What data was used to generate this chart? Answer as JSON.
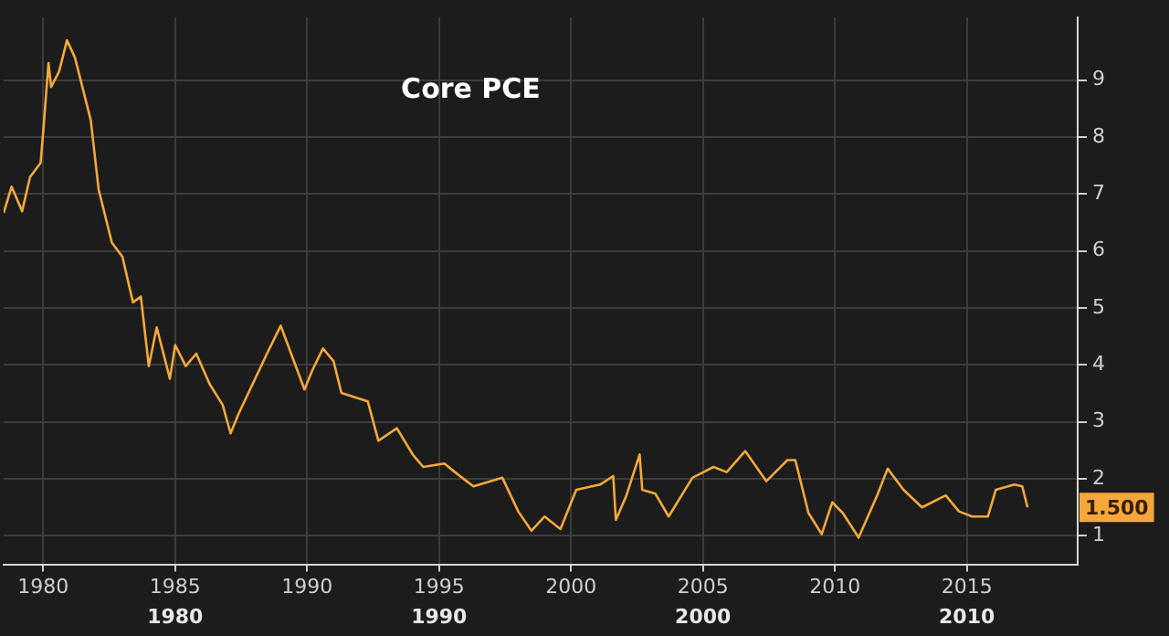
{
  "chart_data": {
    "type": "line",
    "title": "Core PCE",
    "x": [
      1978.5,
      1978.8,
      1979.2,
      1979.5,
      1979.9,
      1980.0,
      1980.2,
      1980.3,
      1980.6,
      1980.9,
      1981.2,
      1981.8,
      1982.1,
      1982.6,
      1983.0,
      1983.4,
      1983.7,
      1984.0,
      1984.3,
      1984.8,
      1985.0,
      1985.4,
      1985.8,
      1986.3,
      1986.8,
      1987.1,
      1987.4,
      1988.5,
      1989.0,
      1989.9,
      1990.2,
      1990.6,
      1991.0,
      1991.3,
      1992.3,
      1992.7,
      1993.4,
      1994.0,
      1994.4,
      1995.2,
      1995.6,
      1996.3,
      1997.4,
      1998.0,
      1998.5,
      1999.0,
      1999.6,
      2000.2,
      2001.1,
      2001.6,
      2001.7,
      2002.1,
      2002.6,
      2002.7,
      2003.2,
      2003.7,
      2004.6,
      2005.4,
      2005.9,
      2006.6,
      2007.4,
      2008.2,
      2008.5,
      2009.0,
      2009.5,
      2009.9,
      2010.3,
      2010.9,
      2011.6,
      2012.0,
      2012.6,
      2013.3,
      2014.2,
      2014.7,
      2015.2,
      2015.8,
      2016.1,
      2016.8,
      2017.1,
      2017.3
    ],
    "series": [
      {
        "color": "#f5a83a",
        "values": [
          6.67,
          7.13,
          6.7,
          7.3,
          7.55,
          8.1,
          9.3,
          8.88,
          9.15,
          9.7,
          9.4,
          8.3,
          7.08,
          6.15,
          5.9,
          5.1,
          5.2,
          3.98,
          4.66,
          3.76,
          4.35,
          3.98,
          4.2,
          3.67,
          3.3,
          2.8,
          3.14,
          4.22,
          4.69,
          3.57,
          3.91,
          4.29,
          4.07,
          3.51,
          3.36,
          2.67,
          2.89,
          2.43,
          2.21,
          2.27,
          2.12,
          1.87,
          2.02,
          1.43,
          1.09,
          1.34,
          1.12,
          1.81,
          1.9,
          2.05,
          1.28,
          1.71,
          2.43,
          1.81,
          1.74,
          1.34,
          2.02,
          2.21,
          2.12,
          2.49,
          1.96,
          2.33,
          2.33,
          1.4,
          1.03,
          1.59,
          1.4,
          0.97,
          1.71,
          2.18,
          1.81,
          1.5,
          1.71,
          1.43,
          1.34,
          1.34,
          1.81,
          1.9,
          1.87,
          1.5
        ]
      }
    ],
    "xlim": [
      1978.5,
      2019.2
    ],
    "xticks": [
      1980,
      1985,
      1990,
      1995,
      2000,
      2005,
      2010,
      2015
    ],
    "ylim": [
      0.5,
      10.1
    ],
    "yticks": [
      1,
      2,
      3,
      4,
      5,
      6,
      7,
      8,
      9
    ],
    "annotations": [
      "1980",
      "1990",
      "2000",
      "2010",
      {
        "text": "1.500",
        "y": 1.5
      }
    ],
    "grid": true,
    "legend": false,
    "marker": "none",
    "line_style": "solid"
  }
}
